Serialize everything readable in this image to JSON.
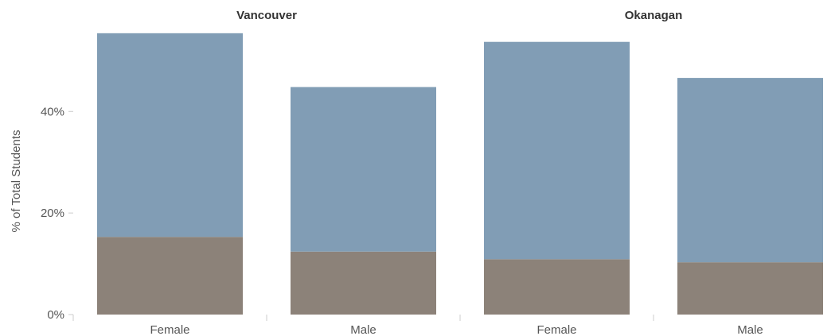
{
  "chart_data": {
    "type": "bar",
    "stacked": true,
    "panels": [
      {
        "title": "Vancouver",
        "categories": [
          "Female",
          "Male"
        ],
        "series": [
          {
            "values": [
              15.3,
              12.4
            ]
          },
          {
            "values": [
              40.1,
              32.4
            ]
          }
        ]
      },
      {
        "title": "Okanagan",
        "categories": [
          "Female",
          "Male"
        ],
        "series": [
          {
            "values": [
              10.9,
              10.3
            ]
          },
          {
            "values": [
              42.8,
              36.3
            ]
          }
        ]
      }
    ],
    "ylabel": "% of Total Students",
    "yticks": [
      "0%",
      "20%",
      "40%"
    ],
    "ytick_values": [
      0,
      20,
      40
    ],
    "ylim": [
      0,
      56
    ],
    "grid": false,
    "legend": "none"
  },
  "colors": {
    "series": [
      "#8c8279",
      "#819db5"
    ],
    "axis": "#cccccc",
    "text": "#555555"
  }
}
